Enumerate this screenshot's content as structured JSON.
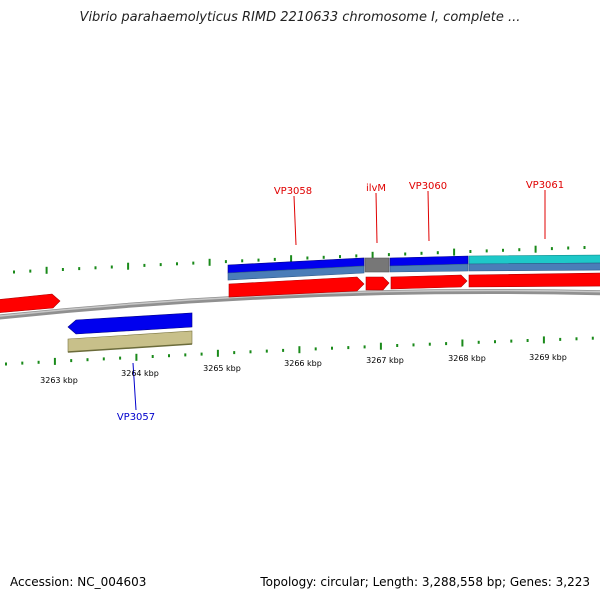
{
  "title": "Vibrio parahaemolyticus RIMD 2210633 chromosome I, complete ...",
  "footer": {
    "accession": "Accession: NC_004603",
    "summary": "Topology: circular; Length: 3,288,558 bp; Genes: 3,223"
  },
  "colors": {
    "backbone": "#808080",
    "tick": "#1a8a1a",
    "cds_red": "#ff0000",
    "cds_blue": "#0000ee",
    "steel_blue": "#4a7db8",
    "gray_feature": "#777777",
    "cyan_feature": "#1ec8c8",
    "khaki_feature": "#c8c08a",
    "label_red": "#e00000",
    "label_blue": "#0000cc"
  },
  "scale_labels": [
    {
      "text": "3263 kbp"
    },
    {
      "text": "3264 kbp"
    },
    {
      "text": "3265 kbp"
    },
    {
      "text": "3266 kbp"
    },
    {
      "text": "3267 kbp"
    },
    {
      "text": "3268 kbp"
    },
    {
      "text": "3269 kbp"
    }
  ],
  "gene_labels": [
    {
      "text": "VP3057",
      "color": "blue"
    },
    {
      "text": "VP3058",
      "color": "red"
    },
    {
      "text": "ilvM",
      "color": "red"
    },
    {
      "text": "VP3060",
      "color": "red"
    },
    {
      "text": "VP3061",
      "color": "red"
    }
  ]
}
